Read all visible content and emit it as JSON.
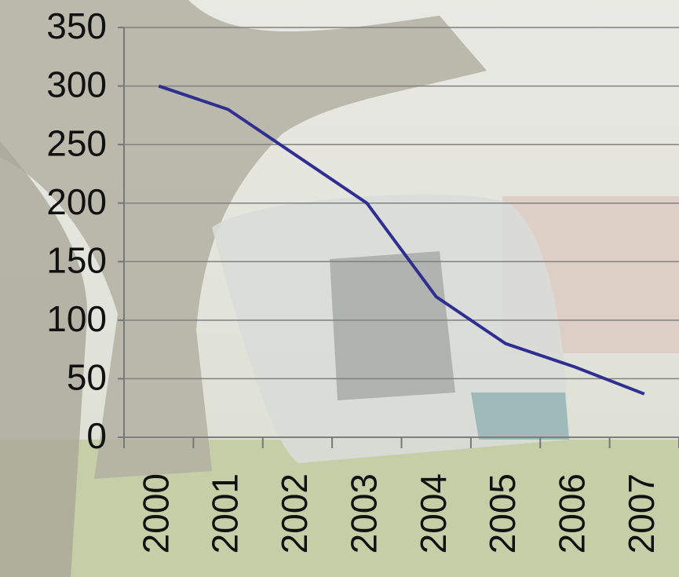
{
  "chart_data": {
    "type": "line",
    "categories": [
      "2000",
      "2001",
      "2002",
      "2003",
      "2004",
      "2005",
      "2006",
      "2007"
    ],
    "values": [
      300,
      280,
      240,
      200,
      120,
      80,
      60,
      37
    ],
    "color": "#2f2f91",
    "ylim": [
      0,
      350
    ],
    "yticks": [
      0,
      50,
      100,
      150,
      200,
      250,
      300,
      350
    ],
    "grid": true
  }
}
